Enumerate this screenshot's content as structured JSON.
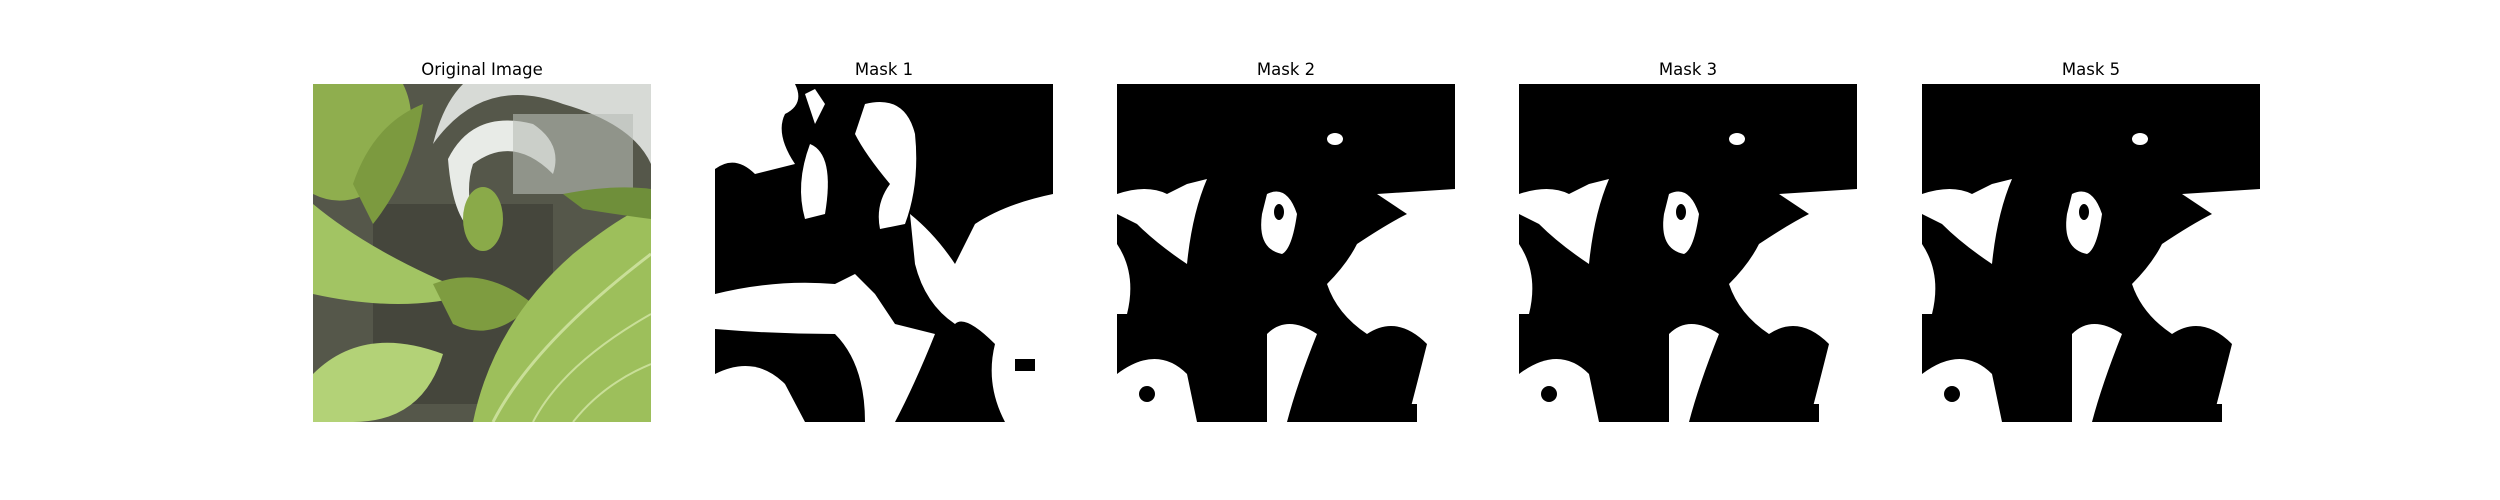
{
  "panels": [
    {
      "title": "Original Image",
      "kind": "photo"
    },
    {
      "title": "Mask 1",
      "kind": "mask"
    },
    {
      "title": "Mask 2",
      "kind": "mask"
    },
    {
      "title": "Mask 3",
      "kind": "mask"
    },
    {
      "title": "Mask 5",
      "kind": "mask"
    }
  ],
  "colors": {
    "background": "#ffffff",
    "mask_foreground": "#ffffff",
    "mask_background": "#000000",
    "leaf_light": "#a9c96a",
    "leaf_dark": "#6f8f3a",
    "soil": "#4a4a3e",
    "pot": "#d9dcd8"
  }
}
